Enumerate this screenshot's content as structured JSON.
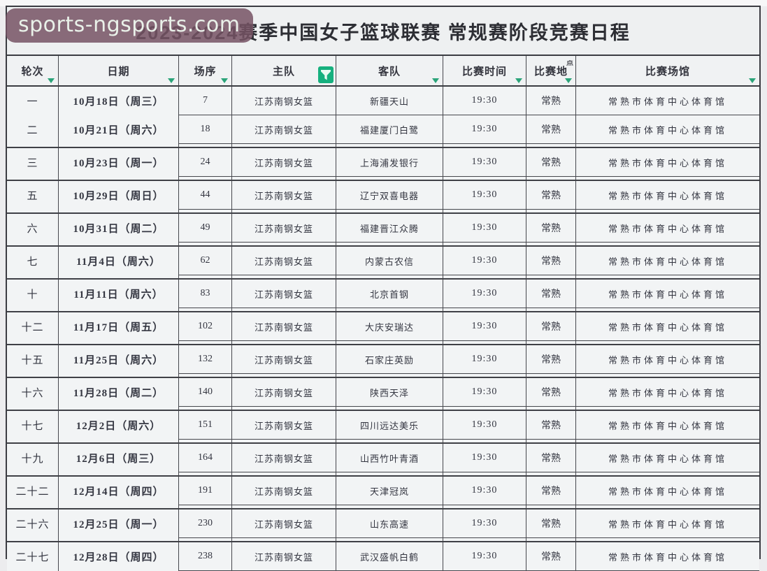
{
  "watermark": {
    "text": "sports-ngsports.com",
    "bg_color": "#765264"
  },
  "title": "2023-2024赛季中国女子篮球联赛 常规赛阶段竞赛日程",
  "colors": {
    "filter_accent_green": "#16b07e",
    "arrow_green": "#2ba479",
    "grid_line": "#46474d",
    "cell_background": "#f2f4f5",
    "text": "#343641"
  },
  "table": {
    "columns": [
      {
        "key": "round",
        "label": "轮次",
        "filter": "arrow"
      },
      {
        "key": "date",
        "label": "日期",
        "filter": "arrow"
      },
      {
        "key": "game_no",
        "label": "场序",
        "filter": "arrow"
      },
      {
        "key": "home",
        "label": "主队",
        "filter": "funnel"
      },
      {
        "key": "away",
        "label": "客队",
        "filter": "arrow"
      },
      {
        "key": "time",
        "label": "比赛时间",
        "filter": "arrow"
      },
      {
        "key": "venue_city",
        "label": "比赛地",
        "label_clipped": "点",
        "filter": "arrow"
      },
      {
        "key": "venue",
        "label": "比赛场馆",
        "filter": "arrow"
      }
    ],
    "rows": [
      {
        "round": "一",
        "date": "10月18日（周三）",
        "game_no": "7",
        "home": "江苏南钢女篮",
        "away": "新疆天山",
        "time": "19:30",
        "venue_city": "常熟",
        "venue": "常熟市体育中心体育馆"
      },
      {
        "round": "二",
        "date": "10月21日（周六）",
        "game_no": "18",
        "home": "江苏南钢女篮",
        "away": "福建厦门白鹭",
        "time": "19:30",
        "venue_city": "常熟",
        "venue": "常熟市体育中心体育馆"
      },
      {
        "round": "三",
        "date": "10月23日（周一）",
        "game_no": "24",
        "home": "江苏南钢女篮",
        "away": "上海浦发银行",
        "time": "19:30",
        "venue_city": "常熟",
        "venue": "常熟市体育中心体育馆"
      },
      {
        "round": "五",
        "date": "10月29日（周日）",
        "game_no": "44",
        "home": "江苏南钢女篮",
        "away": "辽宁双喜电器",
        "time": "19:30",
        "venue_city": "常熟",
        "venue": "常熟市体育中心体育馆"
      },
      {
        "round": "六",
        "date": "10月31日（周二）",
        "game_no": "49",
        "home": "江苏南钢女篮",
        "away": "福建晋江众腾",
        "time": "19:30",
        "venue_city": "常熟",
        "venue": "常熟市体育中心体育馆"
      },
      {
        "round": "七",
        "date": "11月4日（周六）",
        "game_no": "62",
        "home": "江苏南钢女篮",
        "away": "内蒙古农信",
        "time": "19:30",
        "venue_city": "常熟",
        "venue": "常熟市体育中心体育馆"
      },
      {
        "round": "十",
        "date": "11月11日（周六）",
        "game_no": "83",
        "home": "江苏南钢女篮",
        "away": "北京首钢",
        "time": "19:30",
        "venue_city": "常熟",
        "venue": "常熟市体育中心体育馆"
      },
      {
        "round": "十二",
        "date": "11月17日（周五）",
        "game_no": "102",
        "home": "江苏南钢女篮",
        "away": "大庆安瑞达",
        "time": "19:30",
        "venue_city": "常熟",
        "venue": "常熟市体育中心体育馆"
      },
      {
        "round": "十五",
        "date": "11月25日（周六）",
        "game_no": "132",
        "home": "江苏南钢女篮",
        "away": "石家庄英励",
        "time": "19:30",
        "venue_city": "常熟",
        "venue": "常熟市体育中心体育馆"
      },
      {
        "round": "十六",
        "date": "11月28日（周二）",
        "game_no": "140",
        "home": "江苏南钢女篮",
        "away": "陕西天泽",
        "time": "19:30",
        "venue_city": "常熟",
        "venue": "常熟市体育中心体育馆"
      },
      {
        "round": "十七",
        "date": "12月2日（周六）",
        "game_no": "151",
        "home": "江苏南钢女篮",
        "away": "四川远达美乐",
        "time": "19:30",
        "venue_city": "常熟",
        "venue": "常熟市体育中心体育馆"
      },
      {
        "round": "十九",
        "date": "12月6日（周三）",
        "game_no": "164",
        "home": "江苏南钢女篮",
        "away": "山西竹叶青酒",
        "time": "19:30",
        "venue_city": "常熟",
        "venue": "常熟市体育中心体育馆"
      },
      {
        "round": "二十二",
        "date": "12月14日（周四）",
        "game_no": "191",
        "home": "江苏南钢女篮",
        "away": "天津冠岚",
        "time": "19:30",
        "venue_city": "常熟",
        "venue": "常熟市体育中心体育馆"
      },
      {
        "round": "二十六",
        "date": "12月25日（周一）",
        "game_no": "230",
        "home": "江苏南钢女篮",
        "away": "山东高速",
        "time": "19:30",
        "venue_city": "常熟",
        "venue": "常熟市体育中心体育馆"
      },
      {
        "round": "二十七",
        "date": "12月28日（周四）",
        "game_no": "238",
        "home": "江苏南钢女篮",
        "away": "武汉盛帆白鹤",
        "time": "19:30",
        "venue_city": "常熟",
        "venue": "常熟市体育中心体育馆"
      }
    ]
  }
}
